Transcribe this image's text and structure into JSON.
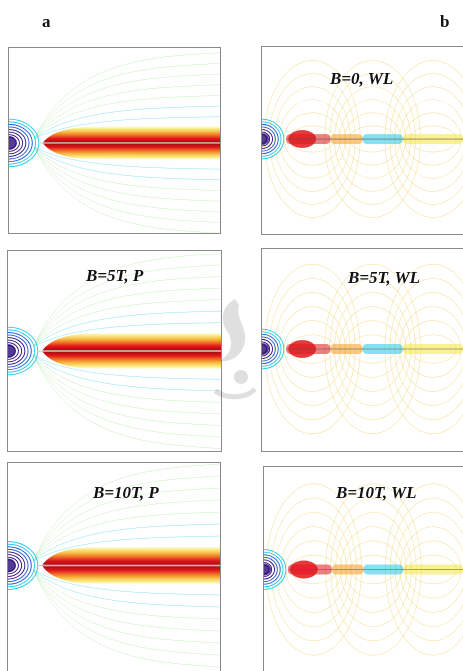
{
  "figure": {
    "columns": [
      {
        "label": "a"
      },
      {
        "label": "b"
      }
    ],
    "panels": [
      {
        "label": "",
        "type": "P"
      },
      {
        "label": "B=0, WL",
        "type": "WL"
      },
      {
        "label": "B=5T, P",
        "type": "P"
      },
      {
        "label": "B=5T, WL",
        "type": "WL"
      },
      {
        "label": "B=10T, P",
        "type": "P"
      },
      {
        "label": "B=10T, WL",
        "type": "WL"
      }
    ],
    "colors": {
      "deep": "#2a0a7a",
      "blue": "#1d55d8",
      "cyan": "#22c8e8",
      "green": "#9be08a",
      "yellow": "#f5e63a",
      "orange": "#f59a1e",
      "red": "#e0161a",
      "darkred": "#9a0a0a",
      "lightcontour": "#f2dc8a"
    }
  }
}
